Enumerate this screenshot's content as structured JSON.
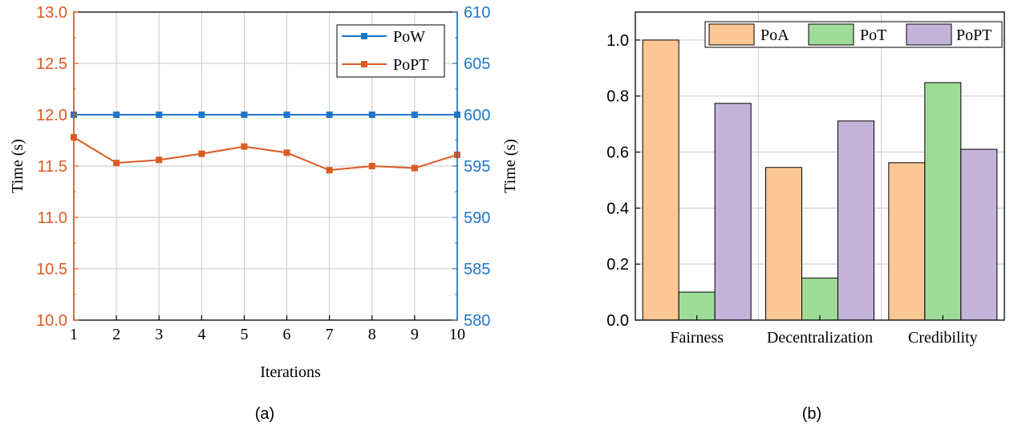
{
  "colors": {
    "pow": "#1f77c9",
    "popt": "#dc5a23",
    "left_axis": "#dc5a23",
    "right_axis": "#1f77c9",
    "poa_bar": "#fdc795",
    "pot_bar": "#9fdc9a",
    "popt_bar": "#c4b3d9",
    "grid": "#c8c8c8",
    "frame": "#000000"
  },
  "chart_data": [
    {
      "type": "line",
      "panel_label": "(a)",
      "xlabel": "Iterations",
      "ylabel_left": "Time (s)",
      "ylabel_right": "Time (s)",
      "x": [
        1,
        2,
        3,
        4,
        5,
        6,
        7,
        8,
        9,
        10
      ],
      "xlim": [
        1,
        10
      ],
      "ylim_left": [
        10.0,
        13.0
      ],
      "ylim_right": [
        580,
        610
      ],
      "left_ticks": [
        "10.0",
        "10.5",
        "11.0",
        "11.5",
        "12.0",
        "12.5",
        "13.0"
      ],
      "right_ticks": [
        "580",
        "585",
        "590",
        "595",
        "600",
        "605",
        "610"
      ],
      "grid": true,
      "legend_position": "top-right",
      "series": [
        {
          "name": "PoW",
          "axis": "right",
          "marker": "square",
          "values": [
            600,
            600,
            600,
            600,
            600,
            600,
            600,
            600,
            600,
            600
          ]
        },
        {
          "name": "PoPT",
          "axis": "left",
          "marker": "square",
          "values": [
            11.78,
            11.53,
            11.56,
            11.62,
            11.69,
            11.63,
            11.46,
            11.5,
            11.48,
            11.61
          ]
        }
      ]
    },
    {
      "type": "bar",
      "panel_label": "(b)",
      "categories": [
        "Fairness",
        "Decentralization",
        "Credibility"
      ],
      "ylim": [
        0.0,
        1.1
      ],
      "y_ticks": [
        "0.0",
        "0.2",
        "0.4",
        "0.6",
        "0.8",
        "1.0"
      ],
      "grid": true,
      "legend_position": "top",
      "series": [
        {
          "name": "PoA",
          "values": [
            1.0,
            0.545,
            0.562
          ]
        },
        {
          "name": "PoT",
          "values": [
            0.1,
            0.15,
            0.848
          ]
        },
        {
          "name": "PoPT",
          "values": [
            0.774,
            0.711,
            0.61
          ]
        }
      ]
    }
  ]
}
